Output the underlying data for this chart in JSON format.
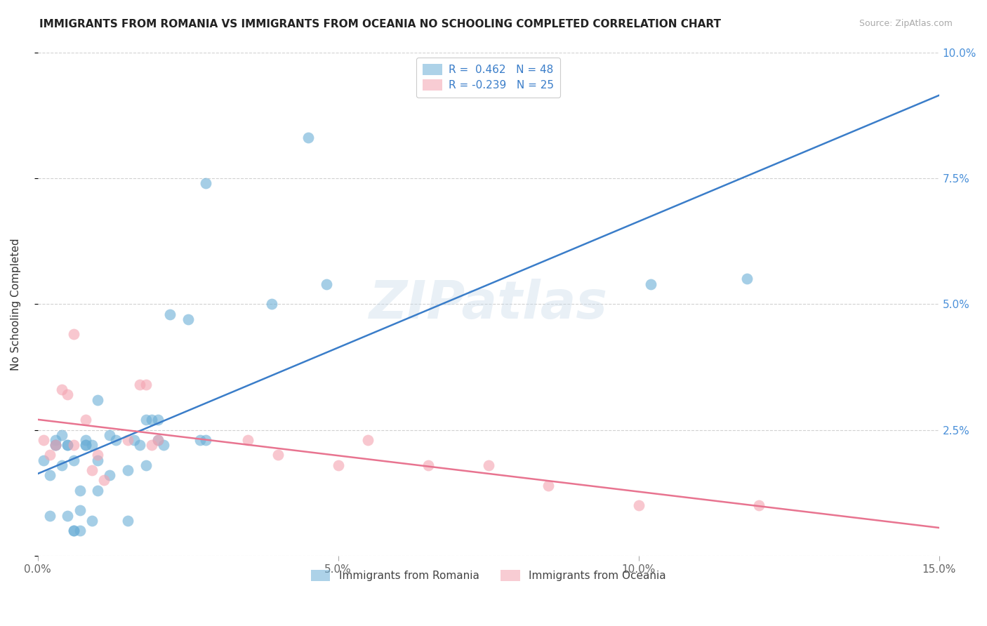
{
  "title": "IMMIGRANTS FROM ROMANIA VS IMMIGRANTS FROM OCEANIA NO SCHOOLING COMPLETED CORRELATION CHART",
  "source": "Source: ZipAtlas.com",
  "ylabel": "No Schooling Completed",
  "xlim": [
    0.0,
    0.15
  ],
  "ylim": [
    0.0,
    0.1
  ],
  "xticks": [
    0.0,
    0.05,
    0.1,
    0.15
  ],
  "yticks": [
    0.0,
    0.025,
    0.05,
    0.075,
    0.1
  ],
  "ytick_labels": [
    "",
    "2.5%",
    "5.0%",
    "7.5%",
    "10.0%"
  ],
  "xtick_labels": [
    "0.0%",
    "5.0%",
    "10.0%",
    "15.0%"
  ],
  "romania_color": "#6aaed6",
  "oceania_color": "#f4a3b0",
  "romania_R": 0.462,
  "romania_N": 48,
  "oceania_R": -0.239,
  "oceania_N": 25,
  "romania_line_color": "#3a7dc9",
  "oceania_line_color": "#e87490",
  "watermark": "ZIPatlas",
  "romania_x": [
    0.001,
    0.002,
    0.002,
    0.003,
    0.003,
    0.003,
    0.004,
    0.004,
    0.005,
    0.005,
    0.005,
    0.006,
    0.006,
    0.006,
    0.007,
    0.007,
    0.007,
    0.008,
    0.008,
    0.008,
    0.009,
    0.009,
    0.01,
    0.01,
    0.01,
    0.012,
    0.012,
    0.013,
    0.015,
    0.015,
    0.016,
    0.017,
    0.018,
    0.018,
    0.019,
    0.02,
    0.02,
    0.021,
    0.022,
    0.025,
    0.027,
    0.028,
    0.028,
    0.039,
    0.045,
    0.048,
    0.102,
    0.118
  ],
  "romania_y": [
    0.019,
    0.008,
    0.016,
    0.022,
    0.022,
    0.023,
    0.018,
    0.024,
    0.008,
    0.022,
    0.022,
    0.005,
    0.005,
    0.019,
    0.005,
    0.009,
    0.013,
    0.022,
    0.022,
    0.023,
    0.007,
    0.022,
    0.013,
    0.019,
    0.031,
    0.016,
    0.024,
    0.023,
    0.007,
    0.017,
    0.023,
    0.022,
    0.018,
    0.027,
    0.027,
    0.023,
    0.027,
    0.022,
    0.048,
    0.047,
    0.023,
    0.023,
    0.074,
    0.05,
    0.083,
    0.054,
    0.054,
    0.055
  ],
  "oceania_x": [
    0.001,
    0.002,
    0.003,
    0.004,
    0.005,
    0.006,
    0.006,
    0.008,
    0.009,
    0.01,
    0.011,
    0.015,
    0.017,
    0.018,
    0.019,
    0.02,
    0.035,
    0.04,
    0.05,
    0.055,
    0.065,
    0.075,
    0.085,
    0.1,
    0.12
  ],
  "oceania_y": [
    0.023,
    0.02,
    0.022,
    0.033,
    0.032,
    0.022,
    0.044,
    0.027,
    0.017,
    0.02,
    0.015,
    0.023,
    0.034,
    0.034,
    0.022,
    0.023,
    0.023,
    0.02,
    0.018,
    0.023,
    0.018,
    0.018,
    0.014,
    0.01,
    0.01
  ],
  "legend_romania_text": "R =  0.462   N = 48",
  "legend_oceania_text": "R = -0.239   N = 25",
  "bottom_legend_romania": "Immigrants from Romania",
  "bottom_legend_oceania": "Immigrants from Oceania"
}
